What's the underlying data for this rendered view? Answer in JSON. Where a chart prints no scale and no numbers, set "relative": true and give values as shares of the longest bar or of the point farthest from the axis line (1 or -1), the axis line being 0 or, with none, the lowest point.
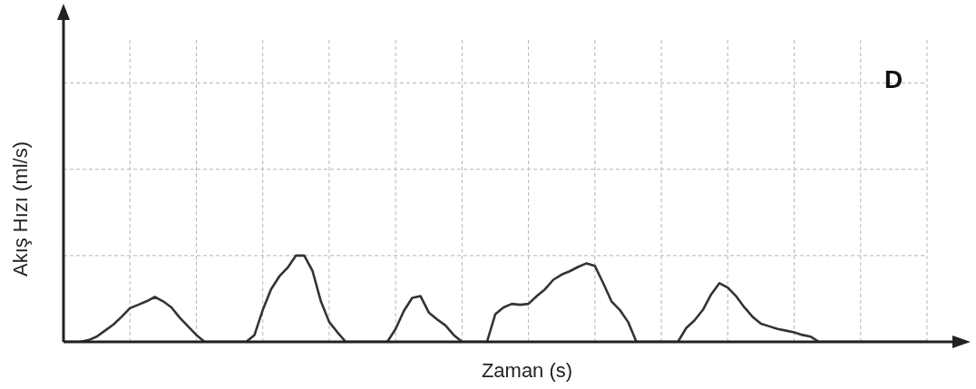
{
  "chart_data": {
    "type": "line",
    "relative": true,
    "xlabel": "Zaman (s)",
    "ylabel": "Akış Hızı (ml/s)",
    "annotations": [
      "D"
    ],
    "grid": true,
    "legend": false,
    "tick_labels": false,
    "marker": "none",
    "line_style": "solid",
    "categories": [
      null,
      null,
      null,
      null,
      null,
      null,
      null,
      null,
      null,
      null,
      null,
      null,
      null,
      null,
      null,
      null,
      null,
      null,
      null,
      null,
      null,
      null,
      null,
      null,
      null,
      null,
      null,
      null,
      null,
      null,
      null,
      null,
      null,
      null,
      null,
      null,
      null,
      null,
      null,
      null,
      null,
      null,
      null,
      null,
      null,
      null,
      null,
      null,
      null,
      null,
      null,
      null,
      null,
      null,
      null,
      null,
      null,
      null,
      null,
      null,
      null,
      null,
      null,
      null,
      null,
      null,
      null,
      null,
      null,
      null,
      null,
      null,
      null,
      null,
      null,
      null,
      null,
      null,
      null,
      null,
      null,
      null,
      null,
      null,
      null,
      null,
      null,
      null,
      null,
      null,
      null,
      null,
      null,
      null,
      null,
      null,
      null,
      null,
      null,
      null,
      null,
      null,
      null,
      null,
      null
    ],
    "series": [
      {
        "color": "#333333",
        "values": [
          0,
          0,
          0,
          0.02,
          0.06,
          0.13,
          0.2,
          0.29,
          0.39,
          0.43,
          0.47,
          0.52,
          0.47,
          0.4,
          0.28,
          0.18,
          0.08,
          0,
          0,
          0,
          0,
          0,
          0,
          0.08,
          0.37,
          0.61,
          0.76,
          0.86,
          1,
          1,
          0.82,
          0.47,
          0.23,
          0.11,
          0,
          0,
          0,
          0,
          0,
          0,
          0.15,
          0.36,
          0.51,
          0.53,
          0.34,
          0.26,
          0.19,
          0.08,
          0,
          0,
          0,
          0,
          0.32,
          0.4,
          0.44,
          0.43,
          0.44,
          0.53,
          0.61,
          0.72,
          0.78,
          0.82,
          0.87,
          0.91,
          0.88,
          0.68,
          0.47,
          0.37,
          0.23,
          0,
          0,
          0,
          0,
          0,
          0,
          0.16,
          0.25,
          0.37,
          0.55,
          0.68,
          0.63,
          0.53,
          0.4,
          0.29,
          0.21,
          0.18,
          0.15,
          0.13,
          0.11,
          0.08,
          0.06,
          0,
          0,
          0,
          0,
          0,
          0,
          0,
          0,
          0,
          0,
          0,
          0,
          0,
          0
        ]
      }
    ]
  }
}
